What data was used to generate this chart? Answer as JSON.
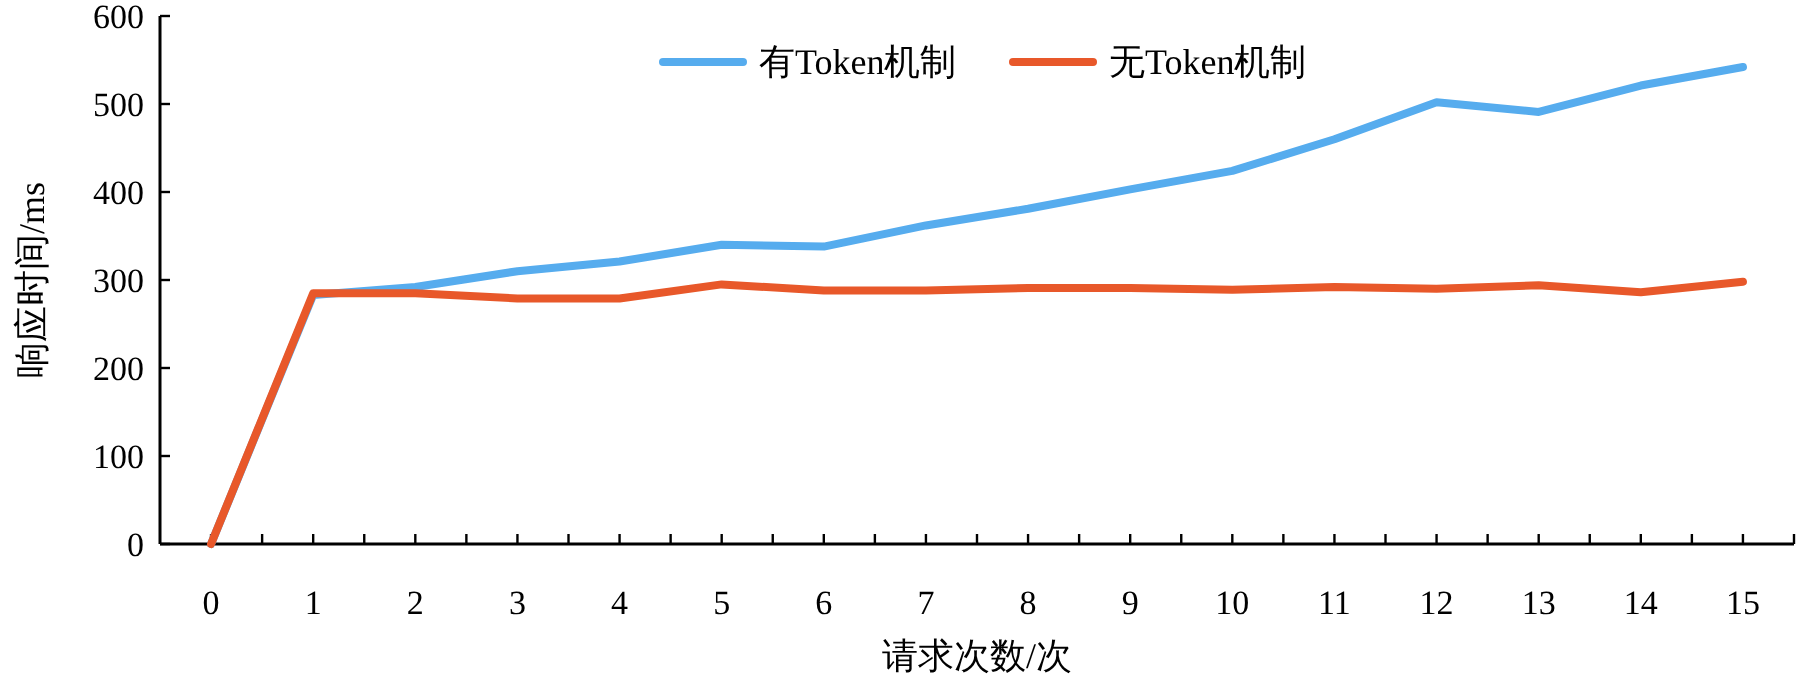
{
  "chart_data": {
    "type": "line",
    "xlabel": "请求次数/次",
    "ylabel": "响应时间/ms",
    "x": [
      0,
      1,
      2,
      3,
      4,
      5,
      6,
      7,
      8,
      9,
      10,
      11,
      12,
      13,
      14,
      15
    ],
    "series": [
      {
        "name": "有Token机制",
        "color": "#56acee",
        "values": [
          0,
          283,
          292,
          310,
          321,
          340,
          338,
          362,
          381,
          403,
          424,
          460,
          502,
          491,
          521,
          542
        ]
      },
      {
        "name": "无Token机制",
        "color": "#e8582a",
        "values": [
          0,
          285,
          285,
          279,
          279,
          295,
          288,
          288,
          291,
          291,
          289,
          292,
          290,
          294,
          286,
          298
        ]
      }
    ],
    "xlim": [
      -0.5,
      15.5
    ],
    "xticks": [
      0,
      {
        "value": 0.5,
        "label": null
      },
      1,
      {
        "value": 1.5,
        "label": null
      },
      2,
      {
        "value": 2.5,
        "label": null
      },
      3,
      {
        "value": 3.5,
        "label": null
      },
      4,
      {
        "value": 4.5,
        "label": null
      },
      5,
      {
        "value": 5.5,
        "label": null
      },
      6,
      {
        "value": 6.5,
        "label": null
      },
      7,
      {
        "value": 7.5,
        "label": null
      },
      8,
      {
        "value": 8.5,
        "label": null
      },
      9,
      {
        "value": 9.5,
        "label": null
      },
      10,
      {
        "value": 10.5,
        "label": null
      },
      11,
      {
        "value": 11.5,
        "label": null
      },
      12,
      {
        "value": 12.5,
        "label": null
      },
      13,
      {
        "value": 13.5,
        "label": null
      },
      14,
      {
        "value": 14.5,
        "label": null
      },
      15,
      {
        "value": 15.5,
        "label": null
      }
    ],
    "ylim": [
      0,
      600
    ],
    "yticks": [
      0,
      100,
      200,
      300,
      400,
      500,
      600
    ],
    "grid": false,
    "legend": "top",
    "marker": "none",
    "line_style": "solid"
  }
}
